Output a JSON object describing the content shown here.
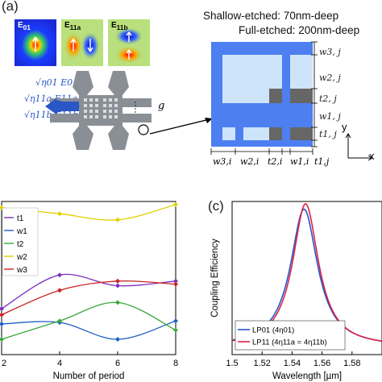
{
  "panel_a": {
    "label": "(a)",
    "modes": [
      {
        "name": "E01",
        "sub": "01"
      },
      {
        "name": "E11a",
        "sub": "11a"
      },
      {
        "name": "E11b",
        "sub": "11b"
      }
    ],
    "equations": [
      "√η01 E01,",
      "√η11a E11a,",
      "√η11b E11b"
    ],
    "gap_label": "g",
    "annotation_shallow": "Shallow-etched: 70nm-deep",
    "annotation_full": "Full-etched: 200nm-deep",
    "right_labels": [
      "w3, j",
      "w2, j",
      "t2, j",
      "w1, j",
      "t1, j"
    ],
    "bottom_labels": [
      "w3,i",
      "w2,i",
      "t2,i",
      "w1,i",
      "t1,j"
    ],
    "axis_y": "y",
    "axis_x": "x"
  },
  "panel_c_label": "(c)",
  "chart_data": [
    {
      "type": "line",
      "xlabel": "Number of period",
      "ylabel": "",
      "xlim": [
        2,
        8
      ],
      "x": [
        2,
        4,
        6,
        8
      ],
      "x_ticks": [
        "2",
        "4",
        "6",
        "8"
      ],
      "series": [
        {
          "name": "t1",
          "color": "#7b2fbe",
          "values": [
            0.3,
            0.52,
            0.45,
            0.48
          ]
        },
        {
          "name": "w1",
          "color": "#1f5fc5",
          "values": [
            0.2,
            0.21,
            0.1,
            0.22
          ]
        },
        {
          "name": "t2",
          "color": "#3aa83a",
          "values": [
            0.1,
            0.22,
            0.34,
            0.16
          ]
        },
        {
          "name": "w2",
          "color": "#e0d000",
          "values": [
            0.96,
            0.92,
            0.88,
            0.98
          ]
        },
        {
          "name": "w3",
          "color": "#cc2222",
          "values": [
            0.26,
            0.42,
            0.48,
            0.46
          ]
        }
      ]
    },
    {
      "type": "line",
      "xlabel": "Wavelength [µm]",
      "ylabel": "Coupling Efficiency",
      "xlim": [
        1.5,
        1.6
      ],
      "ylim": [
        0,
        1
      ],
      "x_ticks": [
        "1.5",
        "1.52",
        "1.54",
        "1.56",
        "1.58"
      ],
      "series": [
        {
          "name": "LP01 (4η01)",
          "color": "#2255cc",
          "peak_x": 1.548,
          "peak_y": 0.95,
          "width": 0.011,
          "baseline": 0.05
        },
        {
          "name": "LP11 (4η11a = 4η11b)",
          "color": "#dd2244",
          "peak_x": 1.549,
          "peak_y": 0.985,
          "width": 0.0105,
          "baseline": 0.05
        }
      ]
    }
  ]
}
